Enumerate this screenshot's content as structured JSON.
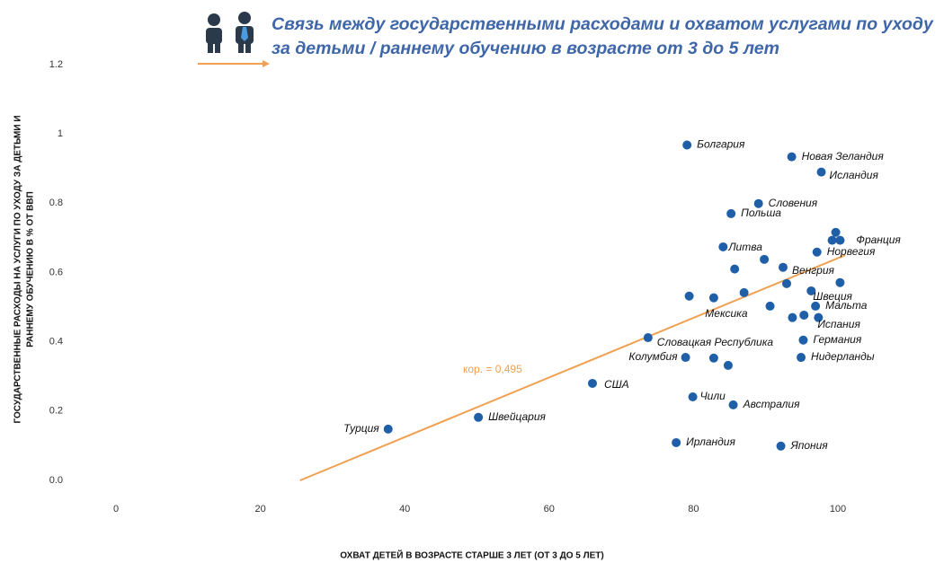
{
  "chart_data": {
    "type": "scatter",
    "title": "Связь между  государственными расходами и охватом услугами по уходу за детьми / раннему обучению в возрасте от 3 до 5 лет",
    "x_label": "ОХВАТ ДЕТЕЙ В ВОЗРАСТЕ СТАРШЕ 3 ЛЕТ (ОТ  3 ДО  5 ЛЕТ)",
    "y_label": [
      "ГОСУДАРСТВЕННЫЕ РАСХОДЫ  НА УСЛУГИ ПО УХОДУ ЗА ДЕТЬМИ  И",
      "РАННЕМУ ОБУЧЕНИЮ В  % ОТ ВВП"
    ],
    "xlim": [
      0,
      100
    ],
    "ylim": [
      0,
      1.2
    ],
    "xticks": [
      0,
      20,
      40,
      60,
      80,
      100
    ],
    "yticks": [
      {
        "value": 1.2,
        "label": "1.2"
      },
      1,
      {
        "value": 0.8,
        "label": "0.8"
      },
      {
        "value": 0.6,
        "label": "0.6"
      },
      {
        "value": 0.4,
        "label": "0.4"
      },
      {
        "value": 0.2,
        "label": "0.2"
      },
      {
        "value": 0,
        "label": "0.0"
      }
    ],
    "color": "#1f5fa8",
    "points": [
      {
        "x": 79.1,
        "y": 0.968,
        "label": "Болгария"
      },
      {
        "x": 93.6,
        "y": 0.934,
        "label": "Новая Зеландия"
      },
      {
        "x": 97.7,
        "y": 0.89,
        "label": "Исландия"
      },
      {
        "x": 89.0,
        "y": 0.799,
        "label": "Словения"
      },
      {
        "x": 85.2,
        "y": 0.77,
        "label": "Польша"
      },
      {
        "x": 99.7,
        "y": 0.716,
        "label": null
      },
      {
        "x": 99.2,
        "y": 0.693,
        "label": null
      },
      {
        "x": 100.3,
        "y": 0.693,
        "label": "Франция"
      },
      {
        "x": 97.1,
        "y": 0.659,
        "label": "Норвегия"
      },
      {
        "x": 84.1,
        "y": 0.674,
        "label": "Литва"
      },
      {
        "x": 89.8,
        "y": 0.638,
        "label": null
      },
      {
        "x": 85.7,
        "y": 0.61,
        "label": null
      },
      {
        "x": 92.4,
        "y": 0.615,
        "label": "Венгрия"
      },
      {
        "x": 92.9,
        "y": 0.568,
        "label": null
      },
      {
        "x": 100.3,
        "y": 0.571,
        "label": null
      },
      {
        "x": 96.3,
        "y": 0.547,
        "label": "Швеция"
      },
      {
        "x": 79.4,
        "y": 0.532,
        "label": null
      },
      {
        "x": 82.8,
        "y": 0.527,
        "label": null
      },
      {
        "x": 87.0,
        "y": 0.542,
        "label": null
      },
      {
        "x": 90.6,
        "y": 0.503,
        "label": "Мексика"
      },
      {
        "x": 96.9,
        "y": 0.503,
        "label": "Мальта"
      },
      {
        "x": 93.7,
        "y": 0.47,
        "label": null
      },
      {
        "x": 95.3,
        "y": 0.477,
        "label": null
      },
      {
        "x": 97.3,
        "y": 0.47,
        "label": "Испания"
      },
      {
        "x": 95.2,
        "y": 0.405,
        "label": "Германия"
      },
      {
        "x": 73.7,
        "y": 0.412,
        "label": "Словацкая Республика"
      },
      {
        "x": 78.9,
        "y": 0.355,
        "label": "Колумбия"
      },
      {
        "x": 82.8,
        "y": 0.353,
        "label": null
      },
      {
        "x": 84.8,
        "y": 0.332,
        "label": null
      },
      {
        "x": 94.9,
        "y": 0.355,
        "label": "Нидерланды"
      },
      {
        "x": 66.0,
        "y": 0.28,
        "label": "США"
      },
      {
        "x": 79.9,
        "y": 0.241,
        "label": "Чили"
      },
      {
        "x": 85.5,
        "y": 0.218,
        "label": "Австралия"
      },
      {
        "x": 50.2,
        "y": 0.182,
        "label": "Швейцария"
      },
      {
        "x": 37.7,
        "y": 0.148,
        "label": "Турция"
      },
      {
        "x": 77.6,
        "y": 0.109,
        "label": "Ирландия"
      },
      {
        "x": 92.1,
        "y": 0.099,
        "label": "Япония"
      }
    ],
    "trendline": {
      "x": [
        25.5,
        101
      ],
      "y": [
        0,
        0.65
      ],
      "color": "#f0a050"
    },
    "annotation": "кор. = 0,495"
  }
}
